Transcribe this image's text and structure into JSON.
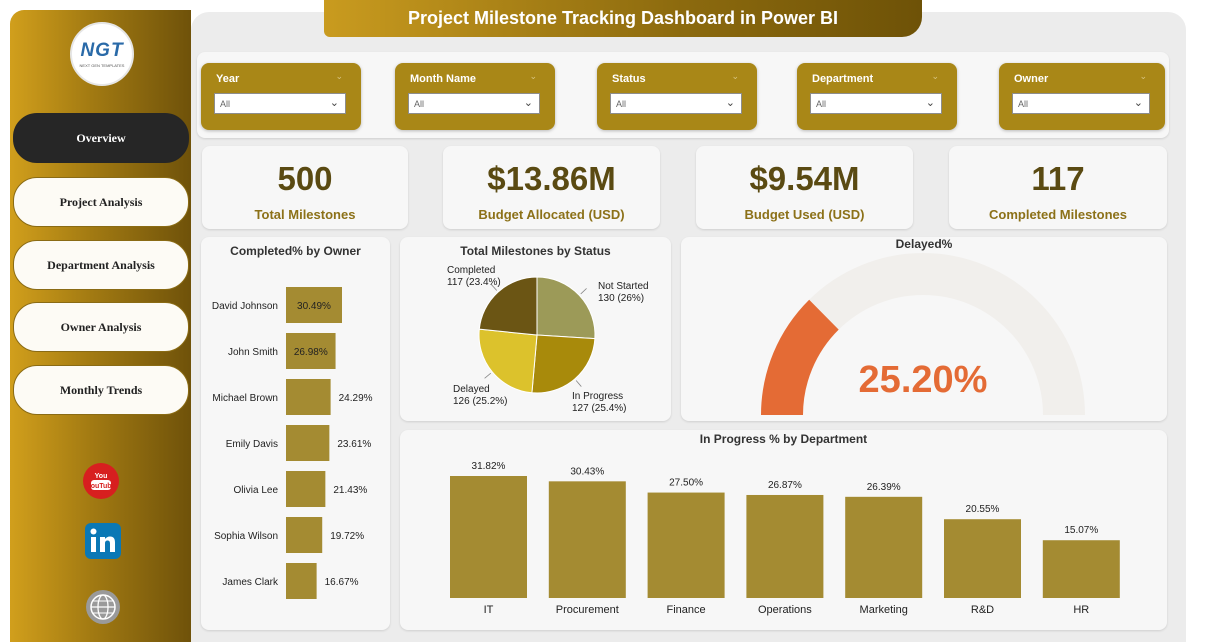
{
  "title": "Project Milestone Tracking Dashboard in Power BI",
  "logo": {
    "text": "NGT",
    "subtitle": "NEXT GEN TEMPLATES"
  },
  "nav": [
    {
      "label": "Overview",
      "active": true
    },
    {
      "label": "Project Analysis",
      "active": false
    },
    {
      "label": "Department Analysis",
      "active": false
    },
    {
      "label": "Owner Analysis",
      "active": false
    },
    {
      "label": "Monthly Trends",
      "active": false
    }
  ],
  "social": {
    "youtube": "YouTube"
  },
  "filters": [
    {
      "label": "Year",
      "value": "All"
    },
    {
      "label": "Month Name",
      "value": "All"
    },
    {
      "label": "Status",
      "value": "All"
    },
    {
      "label": "Department",
      "value": "All"
    },
    {
      "label": "Owner",
      "value": "All"
    }
  ],
  "kpis": [
    {
      "value": "500",
      "label": "Total Milestones"
    },
    {
      "value": "$13.86M",
      "label": "Budget Allocated (USD)"
    },
    {
      "value": "$9.54M",
      "label": "Budget Used (USD)"
    },
    {
      "value": "117",
      "label": "Completed Milestones"
    }
  ],
  "colors": {
    "accent": "#a98717",
    "bar": "#a48b32",
    "gauge": "#e46b35",
    "gauge_track": "#f1efec"
  },
  "chart_data": [
    {
      "type": "bar",
      "orientation": "horizontal",
      "title": "Completed% by Owner",
      "categories": [
        "David Johnson",
        "John Smith",
        "Michael Brown",
        "Emily Davis",
        "Olivia Lee",
        "Sophia Wilson",
        "James Clark"
      ],
      "values": [
        30.49,
        26.98,
        24.29,
        23.61,
        21.43,
        19.72,
        16.67
      ],
      "labels": [
        "30.49%",
        "26.98%",
        "24.29%",
        "23.61%",
        "21.43%",
        "19.72%",
        "16.67%"
      ],
      "xlim": [
        0,
        30.49
      ]
    },
    {
      "type": "pie",
      "title": "Total Milestones by Status",
      "slices": [
        {
          "name": "Not Started",
          "value": 130,
          "label": "130 (26%)",
          "color": "#9c9a58"
        },
        {
          "name": "In Progress",
          "value": 127,
          "label": "127 (25.4%)",
          "color": "#a88a0b"
        },
        {
          "name": "Delayed",
          "value": 126,
          "label": "126 (25.2%)",
          "color": "#dcc22c"
        },
        {
          "name": "Completed",
          "value": 117,
          "label": "117 (23.4%)",
          "color": "#6b5514"
        }
      ]
    },
    {
      "type": "gauge",
      "title": "Delayed%",
      "value": 25.2,
      "max": 100,
      "label": "25.20%"
    },
    {
      "type": "bar",
      "title": "In Progress % by Department",
      "categories": [
        "IT",
        "Procurement",
        "Finance",
        "Operations",
        "Marketing",
        "R&D",
        "HR"
      ],
      "values": [
        31.82,
        30.43,
        27.5,
        26.87,
        26.39,
        20.55,
        15.07
      ],
      "labels": [
        "31.82%",
        "30.43%",
        "27.50%",
        "26.87%",
        "26.39%",
        "20.55%",
        "15.07%"
      ],
      "ylim": [
        0,
        31.82
      ]
    }
  ]
}
